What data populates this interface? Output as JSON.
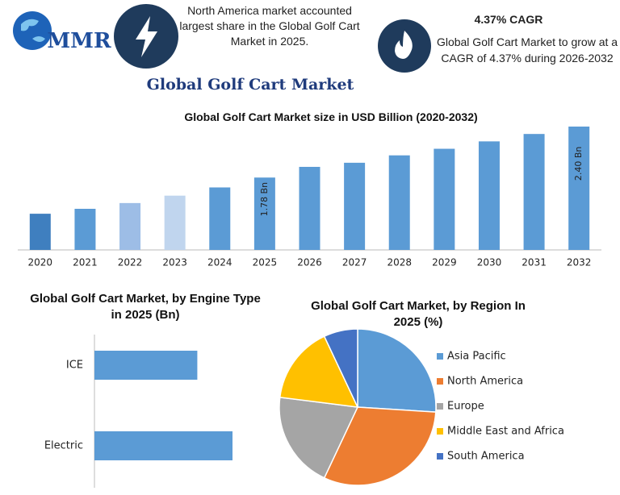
{
  "header": {
    "logo": "MMR",
    "fact1": "North America market accounted largest share in the Global Golf Cart Market in 2025.",
    "cagr_title": "4.37% CAGR",
    "fact2": "Global Golf Cart Market to grow at a CAGR of 4.37% during 2026-2032",
    "title": "Global Golf Cart Market"
  },
  "chart_data": [
    {
      "type": "bar",
      "title": "Global Golf Cart Market size in USD Billion (2020-2032)",
      "categories": [
        "2020",
        "2021",
        "2022",
        "2023",
        "2024",
        "2025",
        "2026",
        "2027",
        "2028",
        "2029",
        "2030",
        "2031",
        "2032"
      ],
      "values": [
        1.34,
        1.4,
        1.47,
        1.56,
        1.66,
        1.78,
        1.91,
        1.96,
        2.05,
        2.13,
        2.22,
        2.31,
        2.4
      ],
      "value_labels": [
        null,
        null,
        null,
        null,
        null,
        "1.78 Bn",
        null,
        null,
        null,
        null,
        null,
        null,
        "2.40 Bn"
      ],
      "colors": [
        "#3f7fbf",
        "#5b9bd5",
        "#9dbde6",
        "#c0d5ee",
        "#5b9bd5",
        "#5b9bd5",
        "#5b9bd5",
        "#5b9bd5",
        "#5b9bd5",
        "#5b9bd5",
        "#5b9bd5",
        "#5b9bd5",
        "#5b9bd5"
      ],
      "ylim": [
        0.9,
        2.4
      ]
    },
    {
      "type": "hbar",
      "title": "Global Golf Cart Market, by Engine Type in 2025 (Bn)",
      "categories": [
        "ICE",
        "Electric"
      ],
      "values": [
        0.76,
        1.02
      ],
      "color": "#5b9bd5"
    },
    {
      "type": "pie",
      "title": "Global Golf Cart Market, by Region In 2025 (%)",
      "categories": [
        "Asia Pacific",
        "North America",
        "Europe",
        "Middle East and Africa",
        "South America"
      ],
      "values": [
        26,
        31,
        20,
        16,
        7
      ],
      "colors": [
        "#5b9bd5",
        "#ed7d31",
        "#a5a5a5",
        "#ffc000",
        "#4472c4"
      ]
    }
  ]
}
